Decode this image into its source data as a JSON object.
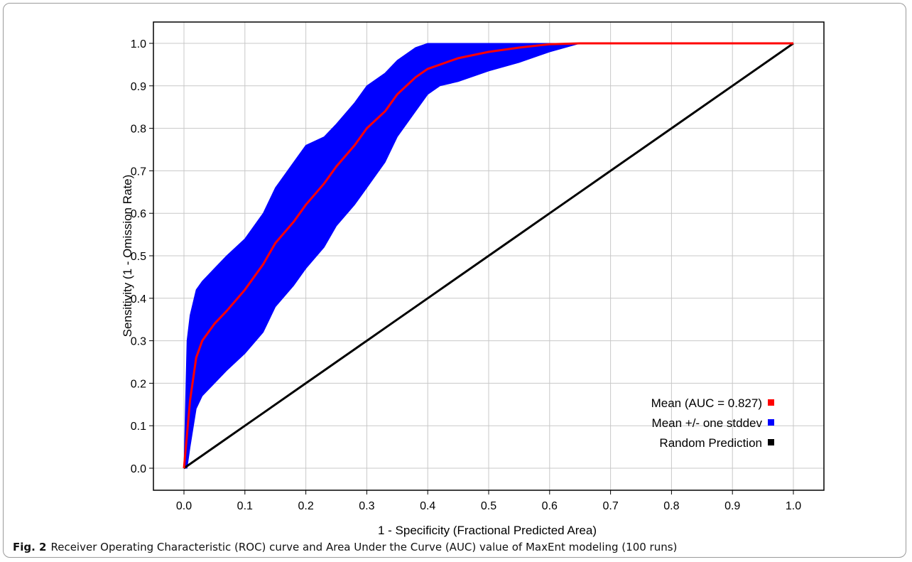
{
  "caption": {
    "label": "Fig. 2",
    "text": "Receiver Operating Characteristic (ROC) curve and Area Under the Curve (AUC) value of MaxEnt modeling (100 runs)"
  },
  "chart_data": {
    "type": "area",
    "xlabel": "1 - Specificity (Fractional Predicted Area)",
    "ylabel": "Sensitivity (1 - Omission Rate)",
    "xlim": [
      0.0,
      1.0
    ],
    "ylim": [
      0.0,
      1.0
    ],
    "x_ticks": [
      "0.0",
      "0.1",
      "0.2",
      "0.3",
      "0.4",
      "0.5",
      "0.6",
      "0.7",
      "0.8",
      "0.9",
      "1.0"
    ],
    "y_ticks": [
      "0.0",
      "0.1",
      "0.2",
      "0.3",
      "0.4",
      "0.5",
      "0.6",
      "0.7",
      "0.8",
      "0.9",
      "1.0"
    ],
    "grid": true,
    "legend_position": "bottom-right",
    "x": [
      0.0,
      0.005,
      0.01,
      0.02,
      0.03,
      0.05,
      0.07,
      0.1,
      0.13,
      0.15,
      0.18,
      0.2,
      0.23,
      0.25,
      0.28,
      0.3,
      0.33,
      0.35,
      0.38,
      0.4,
      0.42,
      0.45,
      0.5,
      0.55,
      0.6,
      0.65,
      0.7,
      0.8,
      0.9,
      1.0
    ],
    "series": [
      {
        "name": "Mean (AUC = 0.827)",
        "color": "#ff0000",
        "y": [
          0.0,
          0.08,
          0.16,
          0.26,
          0.3,
          0.34,
          0.37,
          0.42,
          0.48,
          0.53,
          0.58,
          0.62,
          0.67,
          0.71,
          0.76,
          0.8,
          0.84,
          0.88,
          0.92,
          0.94,
          0.95,
          0.965,
          0.98,
          0.99,
          0.998,
          1.0,
          1.0,
          1.0,
          1.0,
          1.0
        ]
      },
      {
        "name": "Mean +/- one stddev",
        "color": "#0000ff",
        "upper": [
          0.0,
          0.3,
          0.36,
          0.42,
          0.44,
          0.47,
          0.5,
          0.54,
          0.6,
          0.66,
          0.72,
          0.76,
          0.78,
          0.81,
          0.86,
          0.9,
          0.93,
          0.96,
          0.99,
          1.0,
          1.0,
          1.0,
          1.0,
          1.0,
          1.0,
          1.0,
          1.0,
          1.0,
          1.0,
          1.0
        ],
        "lower": [
          0.0,
          0.0,
          0.05,
          0.14,
          0.17,
          0.2,
          0.23,
          0.27,
          0.32,
          0.38,
          0.43,
          0.47,
          0.52,
          0.57,
          0.62,
          0.66,
          0.72,
          0.78,
          0.84,
          0.88,
          0.9,
          0.91,
          0.935,
          0.955,
          0.98,
          1.0,
          1.0,
          1.0,
          1.0,
          1.0
        ]
      },
      {
        "name": "Random Prediction",
        "color": "#000000",
        "y": [
          0.0,
          0.005,
          0.01,
          0.02,
          0.03,
          0.05,
          0.07,
          0.1,
          0.13,
          0.15,
          0.18,
          0.2,
          0.23,
          0.25,
          0.28,
          0.3,
          0.33,
          0.35,
          0.38,
          0.4,
          0.42,
          0.45,
          0.5,
          0.55,
          0.6,
          0.65,
          0.7,
          0.8,
          0.9,
          1.0
        ]
      }
    ]
  }
}
